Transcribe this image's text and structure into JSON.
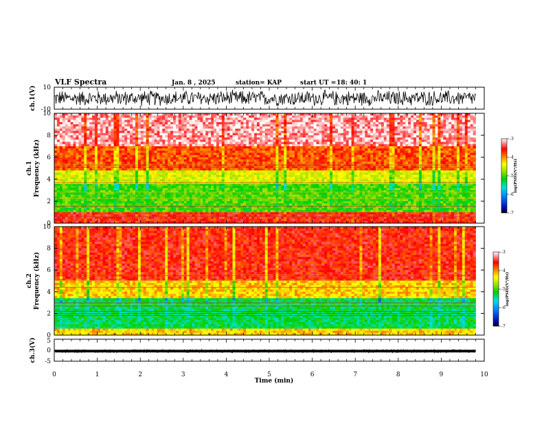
{
  "header": {
    "title": "VLF Spectra",
    "date": "Jan. 8 , 2025",
    "station": "station= KAP",
    "start_label": "start UT =",
    "start_time": "18: 40: 1"
  },
  "chart_data": [
    {
      "type": "line",
      "name": "ch1-waveform",
      "ylabel": "ch.1(V)",
      "ylim": [
        -10,
        10
      ],
      "yticks": [
        "10",
        "-10"
      ],
      "xlim": [
        0,
        10
      ],
      "data_end_min": 9.8,
      "description_values": {
        "mean": 0,
        "amplitude_peak": 8
      }
    },
    {
      "type": "heatmap",
      "name": "ch1-spectrogram",
      "ylabel_top": "ch.1",
      "ylabel": "Frequency (kHz)",
      "ylim": [
        0,
        10
      ],
      "yticks": [
        "0",
        "2",
        "4",
        "6",
        "8",
        "10"
      ],
      "xlim": [
        0,
        10
      ],
      "data_end_min": 9.8,
      "colorbar": {
        "label": "log(PSD)(V²/Hz)",
        "range": [
          -7,
          -3
        ],
        "ticks": [
          "-3",
          "-4",
          "-5",
          "-6",
          "-7"
        ]
      },
      "band_levels_log_psd": [
        {
          "from_khz": 0,
          "to_khz": 1.0,
          "value": -3.6
        },
        {
          "from_khz": 1.0,
          "to_khz": 3.6,
          "value": -5.0
        },
        {
          "from_khz": 3.6,
          "to_khz": 4.8,
          "value": -4.5
        },
        {
          "from_khz": 4.8,
          "to_khz": 7.0,
          "value": -3.8
        },
        {
          "from_khz": 7.0,
          "to_khz": 10.0,
          "value": -3.2
        }
      ]
    },
    {
      "type": "heatmap",
      "name": "ch2-spectrogram",
      "ylabel_top": "ch.2",
      "ylabel": "Frequency (kHz)",
      "ylim": [
        0,
        10
      ],
      "yticks": [
        "0",
        "2",
        "4",
        "6",
        "8",
        "10"
      ],
      "xlim": [
        0,
        10
      ],
      "data_end_min": 9.8,
      "colorbar": {
        "label": "log(PSD)(V²/Hz)",
        "range": [
          -7,
          -3
        ],
        "ticks": [
          "-3",
          "-4",
          "-5",
          "-6",
          "-7"
        ]
      },
      "band_levels_log_psd": [
        {
          "from_khz": 0,
          "to_khz": 0.6,
          "value": -4.2
        },
        {
          "from_khz": 0.6,
          "to_khz": 3.4,
          "value": -5.3
        },
        {
          "from_khz": 3.4,
          "to_khz": 5.0,
          "value": -4.2
        },
        {
          "from_khz": 5.0,
          "to_khz": 10.0,
          "value": -3.6
        }
      ]
    },
    {
      "type": "line",
      "name": "ch3-waveform",
      "ylabel": "ch.3(V)",
      "ylim": [
        -5,
        5
      ],
      "yticks": [
        "5",
        "0",
        "-5"
      ],
      "xlim": [
        0,
        10
      ],
      "data_end_min": 9.8,
      "description_values": {
        "mean": -0.4,
        "amplitude_peak": 0.6
      }
    }
  ],
  "xaxis": {
    "label": "Time (min)",
    "ticks": [
      "0",
      "1",
      "2",
      "3",
      "4",
      "5",
      "6",
      "7",
      "8",
      "9",
      "10"
    ]
  }
}
